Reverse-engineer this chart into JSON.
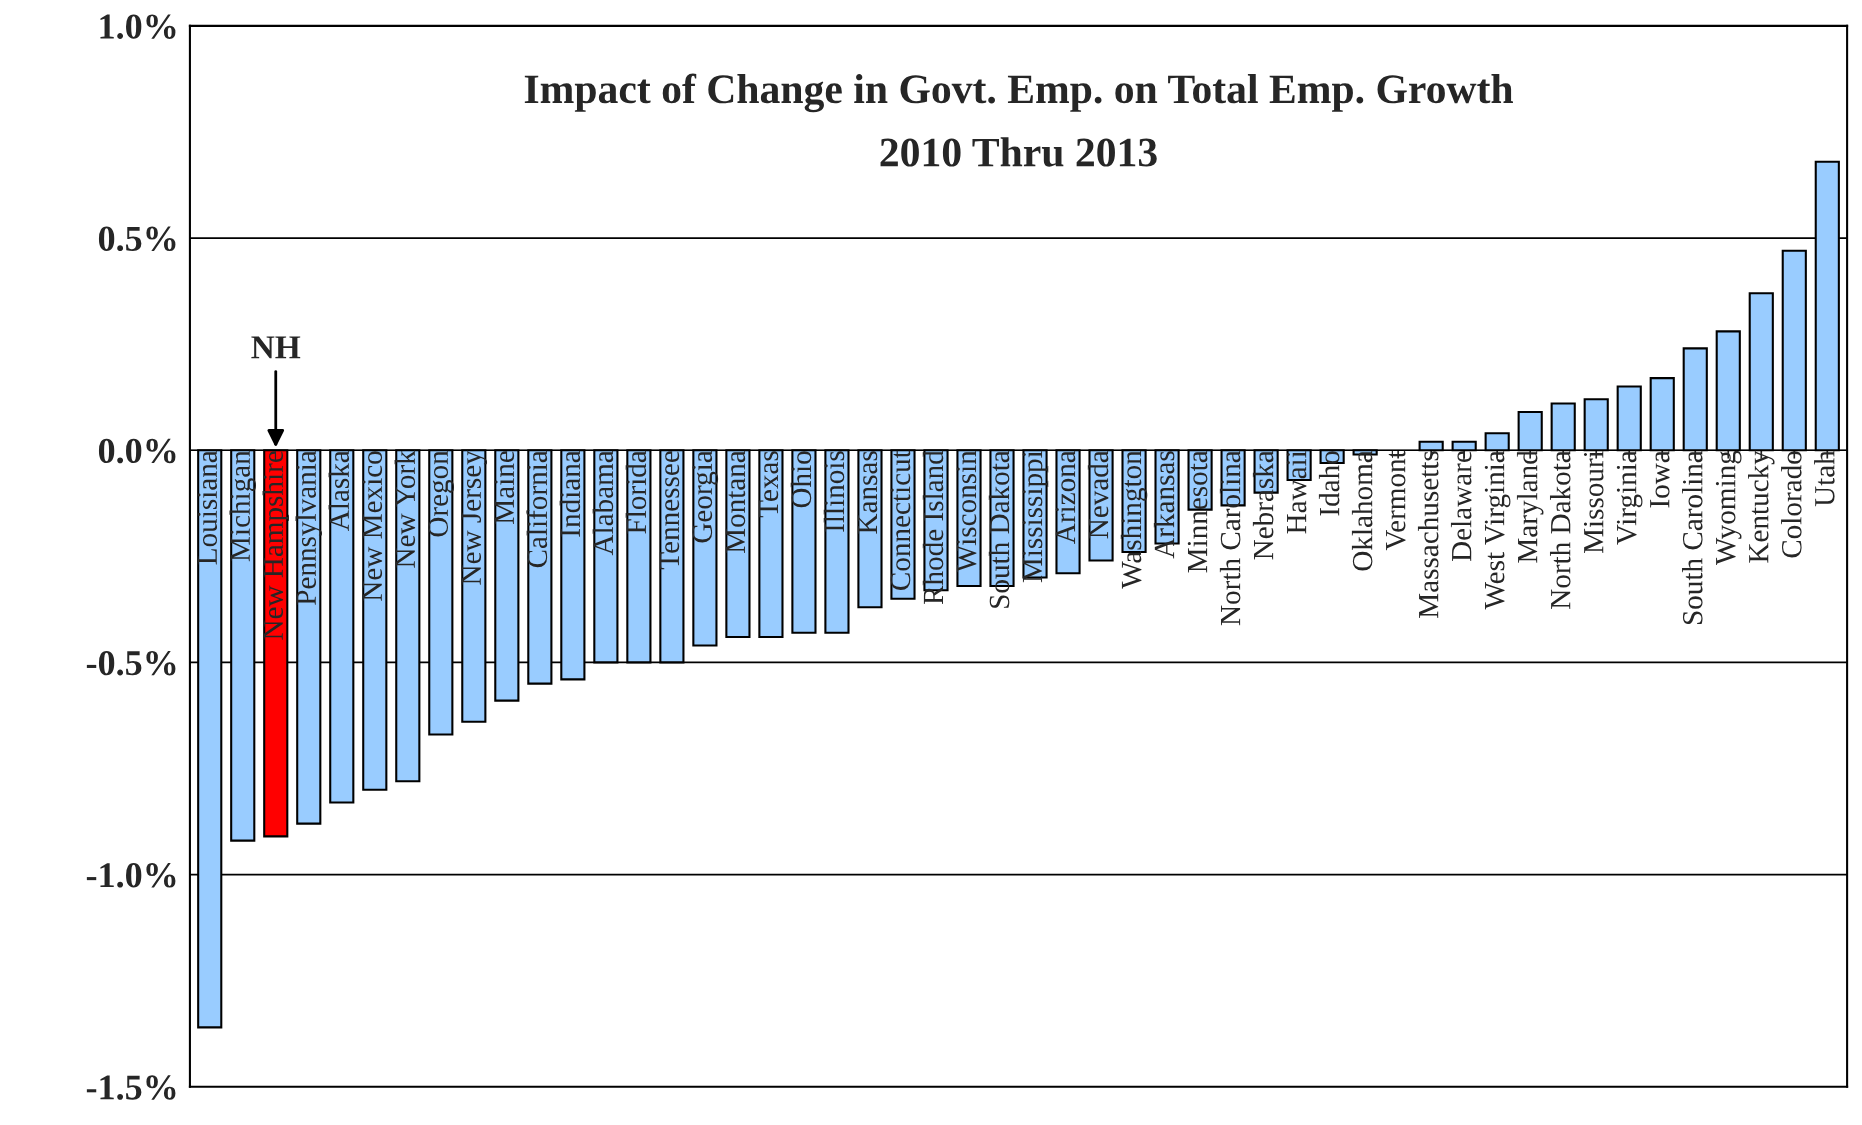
{
  "chart_data": {
    "type": "bar",
    "title": "Impact of Change in Govt. Emp. on Total Emp. Growth",
    "subtitle": "2010 Thru 2013",
    "categories": [
      "Louisiana",
      "Michigan",
      "New Hampshire",
      "Pennsylvania",
      "Alaska",
      "New Mexico",
      "New York",
      "Oregon",
      "New Jersey",
      "Maine",
      "California",
      "Indiana",
      "Alabama",
      "Florida",
      "Tennessee",
      "Georgia",
      "Montana",
      "Texas",
      "Ohio",
      "Illinois",
      "Kansas",
      "Connecticut",
      "Rhode Island",
      "Wisconsin",
      "South Dakota",
      "Mississippi",
      "Arizona",
      "Nevada",
      "Washington",
      "Arkansas",
      "Minnesota",
      "North Carolina",
      "Nebraska",
      "Hawaii",
      "Idaho",
      "Oklahoma",
      "Vermont",
      "Massachusetts",
      "Delaware",
      "West Virginia",
      "Maryland",
      "North Dakota",
      "Missouri",
      "Virginia",
      "Iowa",
      "South Carolina",
      "Wyoming",
      "Kentucky",
      "Colorado",
      "Utah"
    ],
    "values": [
      -1.36,
      -0.92,
      -0.91,
      -0.88,
      -0.83,
      -0.8,
      -0.78,
      -0.67,
      -0.64,
      -0.59,
      -0.55,
      -0.54,
      -0.5,
      -0.5,
      -0.5,
      -0.46,
      -0.44,
      -0.44,
      -0.43,
      -0.43,
      -0.37,
      -0.35,
      -0.33,
      -0.32,
      -0.32,
      -0.3,
      -0.29,
      -0.26,
      -0.24,
      -0.22,
      -0.14,
      -0.13,
      -0.1,
      -0.07,
      -0.03,
      -0.01,
      0,
      0.02,
      0.02,
      0.04,
      0.09,
      0.11,
      0.12,
      0.15,
      0.17,
      0.24,
      0.28,
      0.37,
      0.47,
      0.68
    ],
    "colors": [
      "#99ccff",
      "#99ccff",
      "#ff0000",
      "#99ccff",
      "#99ccff",
      "#99ccff",
      "#99ccff",
      "#99ccff",
      "#99ccff",
      "#99ccff",
      "#99ccff",
      "#99ccff",
      "#99ccff",
      "#99ccff",
      "#99ccff",
      "#99ccff",
      "#99ccff",
      "#99ccff",
      "#99ccff",
      "#99ccff",
      "#99ccff",
      "#99ccff",
      "#99ccff",
      "#99ccff",
      "#99ccff",
      "#99ccff",
      "#99ccff",
      "#99ccff",
      "#99ccff",
      "#99ccff",
      "#99ccff",
      "#99ccff",
      "#99ccff",
      "#99ccff",
      "#99ccff",
      "#99ccff",
      "#99ccff",
      "#99ccff",
      "#99ccff",
      "#99ccff",
      "#99ccff",
      "#99ccff",
      "#99ccff",
      "#99ccff",
      "#99ccff",
      "#99ccff",
      "#99ccff",
      "#99ccff",
      "#99ccff",
      "#99ccff"
    ],
    "ylim": [
      -1.5,
      1.0
    ],
    "yticks": [
      {
        "value": -1.5,
        "label": "-1.5%"
      },
      {
        "value": -1.0,
        "label": "-1.0%"
      },
      {
        "value": -0.5,
        "label": "-0.5%"
      },
      {
        "value": 0.0,
        "label": "0.0%"
      },
      {
        "value": 0.5,
        "label": "0.5%"
      },
      {
        "value": 1.0,
        "label": "1.0%"
      }
    ],
    "grid": "y",
    "legend": false,
    "annotations": [
      {
        "text": "NH",
        "x": "New Hampshire",
        "y": 0
      }
    ]
  }
}
